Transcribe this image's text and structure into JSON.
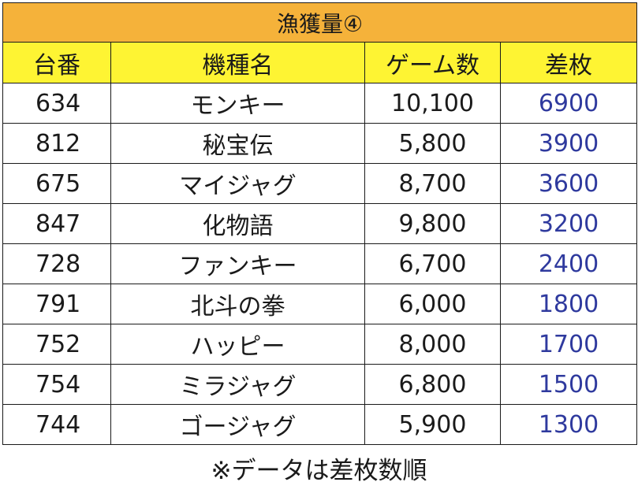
{
  "title": "漁獲量④",
  "headers": [
    "台番",
    "機種名",
    "ゲーム数",
    "差枚"
  ],
  "rows": [
    {
      "machine": "634",
      "model": "モンキー",
      "games": "10,100",
      "diff": "6900"
    },
    {
      "machine": "812",
      "model": "秘宝伝",
      "games": "5,800",
      "diff": "3900"
    },
    {
      "machine": "675",
      "model": "マイジャグ",
      "games": "8,700",
      "diff": "3600"
    },
    {
      "machine": "847",
      "model": "化物語",
      "games": "9,800",
      "diff": "3200"
    },
    {
      "machine": "728",
      "model": "ファンキー",
      "games": "6,700",
      "diff": "2400"
    },
    {
      "machine": "791",
      "model": "北斗の拳",
      "games": "6,000",
      "diff": "1800"
    },
    {
      "machine": "752",
      "model": "ハッピー",
      "games": "8,000",
      "diff": "1700"
    },
    {
      "machine": "754",
      "model": "ミラジャグ",
      "games": "6,800",
      "diff": "1500"
    },
    {
      "machine": "744",
      "model": "ゴージャグ",
      "games": "5,900",
      "diff": "1300"
    }
  ],
  "footnote": "※データは差枚数順",
  "colors": {
    "title_bg": "#f5b23a",
    "header_bg": "#fef433",
    "diff_text": "#2f3a9e"
  }
}
